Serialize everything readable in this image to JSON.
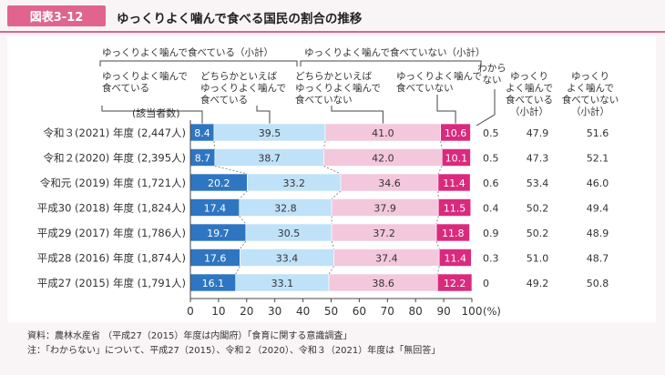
{
  "header": {
    "figure_label": "図表3-12",
    "title": "ゆっくりよく噛んで食べる国民の割合の推移"
  },
  "chart_data": {
    "type": "bar",
    "orientation": "horizontal-stacked-100",
    "title": "ゆっくりよく噛んで食べる国民の割合の推移",
    "categories": [
      "令和３(2021) 年度 (2,447人)",
      "令和２(2020) 年度 (2,395人)",
      "令和元 (2019) 年度 (1,721人)",
      "平成30 (2018) 年度 (1,824人)",
      "平成29 (2017) 年度 (1,786人)",
      "平成28 (2016) 年度 (1,874人)",
      "平成27 (2015) 年度 (1,791人)"
    ],
    "series": [
      {
        "name": "ゆっくりよく噛んで食べている",
        "color": "#2f76c2",
        "text_color": "#ffffff",
        "values": [
          8.4,
          8.7,
          20.2,
          17.4,
          19.7,
          17.6,
          16.1
        ]
      },
      {
        "name": "どちらかといえばゆっくりよく噛んで食べている",
        "color": "#bfe2f8",
        "text_color": "#333333",
        "values": [
          39.5,
          38.7,
          33.2,
          32.8,
          30.5,
          33.4,
          33.1
        ]
      },
      {
        "name": "どちらかといえばゆっくりよく噛んで食べていない",
        "color": "#f3c8dc",
        "text_color": "#333333",
        "values": [
          41.0,
          42.0,
          34.6,
          37.9,
          37.2,
          37.4,
          38.6
        ]
      },
      {
        "name": "ゆっくりよく噛んで食べていない",
        "color": "#da2a7e",
        "text_color": "#ffffff",
        "values": [
          10.6,
          10.1,
          11.4,
          11.5,
          11.8,
          11.4,
          12.2
        ]
      },
      {
        "name": "わからない",
        "values": [
          0.5,
          0.5,
          0.6,
          0.4,
          0.9,
          0.3,
          0
        ]
      }
    ],
    "subtotals": {
      "eating_slowly": {
        "label": "ゆっくりよく噛んで食べている（小計）",
        "values": [
          47.9,
          47.3,
          53.4,
          50.2,
          50.2,
          51.0,
          49.2
        ]
      },
      "not_eating_slowly": {
        "label": "ゆっくりよく噛んで食べていない（小計）",
        "values": [
          51.6,
          52.1,
          46.0,
          49.4,
          48.9,
          48.7,
          50.8
        ]
      }
    },
    "xlim": [
      0,
      100
    ],
    "x_ticks": [
      0,
      10,
      20,
      30,
      40,
      50,
      60,
      70,
      80,
      90,
      100
    ],
    "x_unit": "(%)",
    "y_axis_title": "(該当者数)",
    "legend": {
      "group_left": "ゆっくりよく噛んで食べている（小計）",
      "group_right": "ゆっくりよく噛んで食べていない（小計）",
      "s1": [
        "ゆっくりよく噛んで",
        "食べている"
      ],
      "s2": [
        "どちらかといえば",
        "ゆっくりよく噛んで",
        "食べている"
      ],
      "s3": [
        "どちらかといえば",
        "ゆっくりよく噛んで",
        "食べていない"
      ],
      "s4": [
        "ゆっくりよく噛んで",
        "食べていない"
      ],
      "s5": [
        "わから",
        "ない"
      ],
      "sub1": [
        "ゆっくり",
        "よく噛んで",
        "食べている",
        "（小計）"
      ],
      "sub2": [
        "ゆっくり",
        "よく噛んで",
        "食べていない",
        "（小計）"
      ]
    }
  },
  "notes": {
    "source": "資料：農林水産省 （平成27（2015）年度は内閣府）「食育に関する意識調査」",
    "note": "注：「わからない」について、平成27（2015）、令和２（2020）、令和３（2021）年度は「無回答」"
  }
}
